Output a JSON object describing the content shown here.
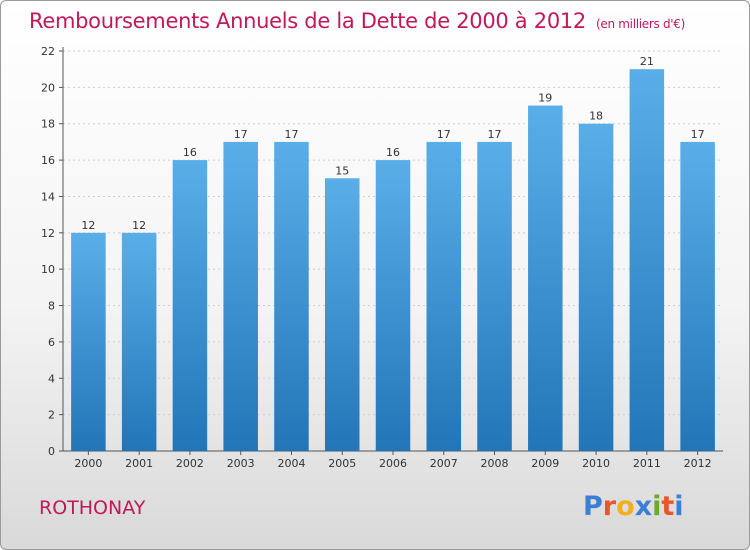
{
  "title": "Remboursements Annuels de la Dette de 2000 à 2012",
  "unit": "(en milliers d'€)",
  "city": "ROTHONAY",
  "logo": {
    "letters": [
      "P",
      "r",
      "o",
      "x",
      "i",
      "t",
      "i"
    ],
    "colors": [
      "#3a7fd5",
      "#e8562a",
      "#f2b01e",
      "#3a7fd5",
      "#6aab2e",
      "#e8562a",
      "#3a7fd5"
    ]
  },
  "colors": {
    "bar_top": "#5aaee8",
    "bar_bottom": "#2276b8",
    "title": "#c2185b"
  },
  "chart_data": {
    "type": "bar",
    "categories": [
      "2000",
      "2001",
      "2002",
      "2003",
      "2004",
      "2005",
      "2006",
      "2007",
      "2008",
      "2009",
      "2010",
      "2011",
      "2012"
    ],
    "values": [
      12,
      12,
      16,
      17,
      17,
      15,
      16,
      17,
      17,
      19,
      18,
      21,
      17
    ],
    "title": "Remboursements Annuels de la Dette de 2000 à 2012",
    "xlabel": "",
    "ylabel": "",
    "ylim": [
      0,
      22
    ],
    "yticks": [
      0,
      2,
      4,
      6,
      8,
      10,
      12,
      14,
      16,
      18,
      20,
      22
    ],
    "grid": true
  }
}
